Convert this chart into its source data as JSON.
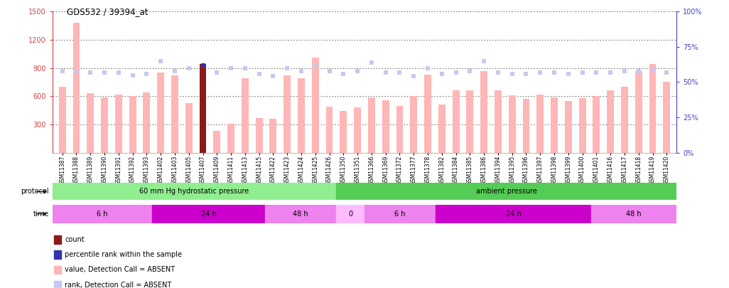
{
  "title": "GDS532 / 39394_at",
  "samples": [
    "GSM11387",
    "GSM11388",
    "GSM11389",
    "GSM11390",
    "GSM11391",
    "GSM11392",
    "GSM11393",
    "GSM11402",
    "GSM11403",
    "GSM11405",
    "GSM11407",
    "GSM11409",
    "GSM11411",
    "GSM11413",
    "GSM11415",
    "GSM11422",
    "GSM11423",
    "GSM11424",
    "GSM11425",
    "GSM11426",
    "GSM11350",
    "GSM11351",
    "GSM11366",
    "GSM11369",
    "GSM11372",
    "GSM11377",
    "GSM11378",
    "GSM11382",
    "GSM11384",
    "GSM11385",
    "GSM11386",
    "GSM11394",
    "GSM11395",
    "GSM11396",
    "GSM11397",
    "GSM11398",
    "GSM11399",
    "GSM11400",
    "GSM11401",
    "GSM11416",
    "GSM11417",
    "GSM11418",
    "GSM11419",
    "GSM11420"
  ],
  "bar_values": [
    700,
    1380,
    630,
    590,
    620,
    600,
    640,
    855,
    820,
    530,
    940,
    230,
    310,
    790,
    370,
    360,
    820,
    790,
    1010,
    490,
    440,
    480,
    590,
    560,
    500,
    600,
    830,
    510,
    660,
    660,
    870,
    660,
    610,
    570,
    620,
    590,
    550,
    580,
    600,
    660,
    700,
    870,
    940,
    750
  ],
  "rank_values": [
    58,
    58,
    57,
    57,
    57,
    55,
    56,
    65,
    58,
    60,
    62,
    57,
    60,
    60,
    56,
    54,
    60,
    58,
    62,
    58,
    56,
    58,
    64,
    57,
    57,
    54,
    60,
    56,
    57,
    58,
    65,
    57,
    56,
    56,
    57,
    57,
    56,
    57,
    57,
    57,
    58,
    58,
    59,
    57
  ],
  "special_bar_idx": 10,
  "special_rank_idx": 10,
  "bar_color_normal": "#FFB6B6",
  "bar_color_special": "#8B1A1A",
  "rank_color_normal": "#C8C8F0",
  "rank_color_special": "#3333AA",
  "ylim_left": [
    0,
    1500
  ],
  "ylim_right": [
    0,
    100
  ],
  "yticks_left": [
    300,
    600,
    900,
    1200,
    1500
  ],
  "yticks_right": [
    0,
    25,
    50,
    75,
    100
  ],
  "protocol_bands": [
    {
      "label": "60 mm Hg hydrostatic pressure",
      "start": 0,
      "end": 20,
      "color": "#90EE90"
    },
    {
      "label": "ambient pressure",
      "start": 20,
      "end": 44,
      "color": "#55CC55"
    }
  ],
  "time_bands": [
    {
      "label": "6 h",
      "start": 0,
      "end": 7,
      "color": "#EE82EE"
    },
    {
      "label": "24 h",
      "start": 7,
      "end": 15,
      "color": "#CC00CC"
    },
    {
      "label": "48 h",
      "start": 15,
      "end": 20,
      "color": "#EE82EE"
    },
    {
      "label": "0",
      "start": 20,
      "end": 22,
      "color": "#FFBBFF"
    },
    {
      "label": "6 h",
      "start": 22,
      "end": 27,
      "color": "#EE82EE"
    },
    {
      "label": "24 h",
      "start": 27,
      "end": 38,
      "color": "#CC00CC"
    },
    {
      "label": "48 h",
      "start": 38,
      "end": 44,
      "color": "#EE82EE"
    }
  ],
  "background_color": "#FFFFFF",
  "left_axis_color": "#CC4444",
  "right_axis_color": "#4444BB",
  "grid_color": "#000000"
}
